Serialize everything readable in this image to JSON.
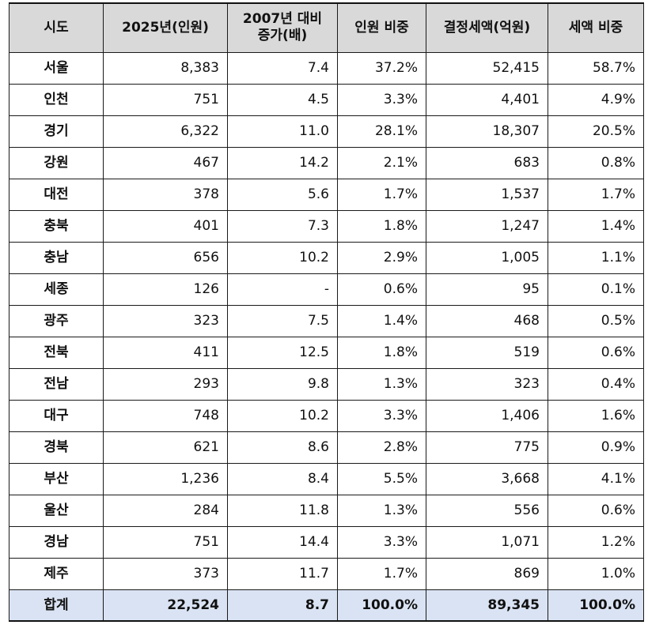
{
  "table": {
    "headers": [
      "시도",
      "2025년(인원)",
      "2007년 대비\n증가(배)",
      "인원 비중",
      "결정세액(억원)",
      "세액 비중"
    ],
    "header_lines": [
      [
        "시도"
      ],
      [
        "2025년(인원)"
      ],
      [
        "2007년 대비",
        "증가(배)"
      ],
      [
        "인원 비중"
      ],
      [
        "결정세액(억원)"
      ],
      [
        "세액 비중"
      ]
    ],
    "rows": [
      [
        "서울",
        "8,383",
        "7.4",
        "37.2%",
        "52,415",
        "58.7%"
      ],
      [
        "인천",
        "751",
        "4.5",
        "3.3%",
        "4,401",
        "4.9%"
      ],
      [
        "경기",
        "6,322",
        "11.0",
        "28.1%",
        "18,307",
        "20.5%"
      ],
      [
        "강원",
        "467",
        "14.2",
        "2.1%",
        "683",
        "0.8%"
      ],
      [
        "대전",
        "378",
        "5.6",
        "1.7%",
        "1,537",
        "1.7%"
      ],
      [
        "충북",
        "401",
        "7.3",
        "1.8%",
        "1,247",
        "1.4%"
      ],
      [
        "충남",
        "656",
        "10.2",
        "2.9%",
        "1,005",
        "1.1%"
      ],
      [
        "세종",
        "126",
        "-",
        "0.6%",
        "95",
        "0.1%"
      ],
      [
        "광주",
        "323",
        "7.5",
        "1.4%",
        "468",
        "0.5%"
      ],
      [
        "전북",
        "411",
        "12.5",
        "1.8%",
        "519",
        "0.6%"
      ],
      [
        "전남",
        "293",
        "9.8",
        "1.3%",
        "323",
        "0.4%"
      ],
      [
        "대구",
        "748",
        "10.2",
        "3.3%",
        "1,406",
        "1.6%"
      ],
      [
        "경북",
        "621",
        "8.6",
        "2.8%",
        "775",
        "0.9%"
      ],
      [
        "부산",
        "1,236",
        "8.4",
        "5.5%",
        "3,668",
        "4.1%"
      ],
      [
        "울산",
        "284",
        "11.8",
        "1.3%",
        "556",
        "0.6%"
      ],
      [
        "경남",
        "751",
        "14.4",
        "3.3%",
        "1,071",
        "1.2%"
      ],
      [
        "제주",
        "373",
        "11.7",
        "1.7%",
        "869",
        "1.0%"
      ]
    ],
    "total": [
      "합계",
      "22,524",
      "8.7",
      "100.0%",
      "89,345",
      "100.0%"
    ]
  },
  "colors": {
    "header_bg": "#d9d9d9",
    "total_bg": "#dae3f3",
    "border": "#1a1a1a"
  }
}
